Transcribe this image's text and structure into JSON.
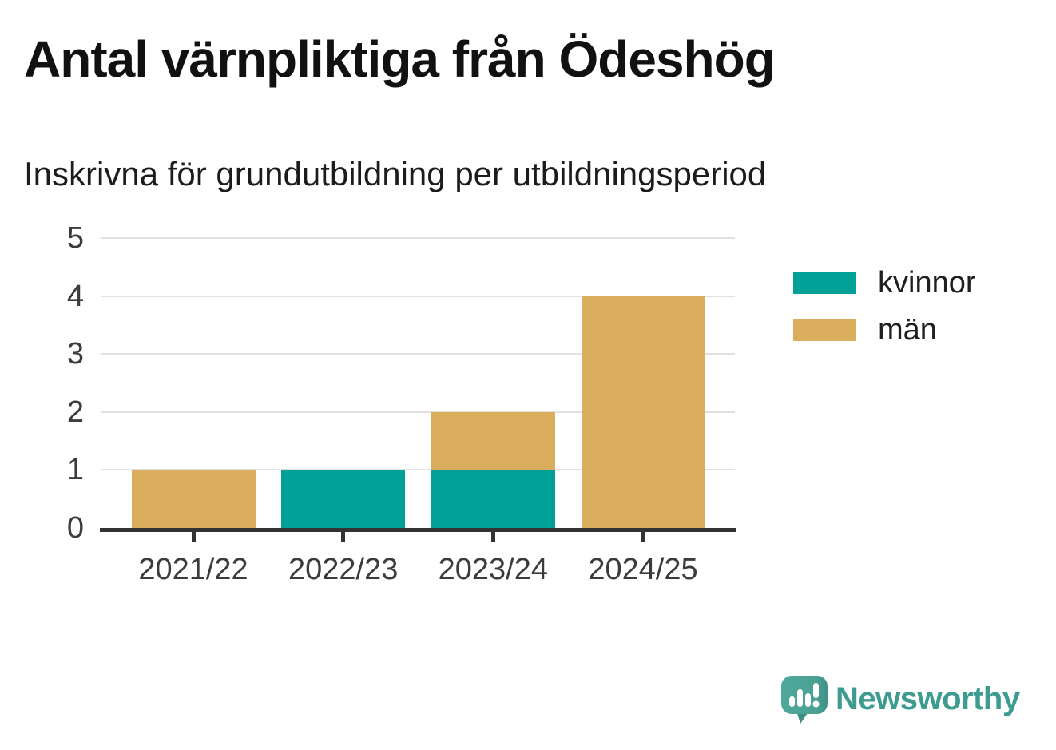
{
  "title": "Antal värnpliktiga från Ödeshög",
  "subtitle": "Inskrivna för grundutbildning per utbildningsperiod",
  "legend": {
    "items": [
      {
        "label": "kvinnor",
        "color": "#00a096"
      },
      {
        "label": "män",
        "color": "#dbae5e"
      }
    ]
  },
  "chart_data": {
    "type": "bar",
    "stacked": true,
    "title": "Antal värnpliktiga från Ödeshög",
    "subtitle": "Inskrivna för grundutbildning per utbildningsperiod",
    "categories": [
      "2021/22",
      "2022/23",
      "2023/24",
      "2024/25"
    ],
    "series": [
      {
        "name": "kvinnor",
        "color": "#00a096",
        "values": [
          0,
          1,
          1,
          0
        ]
      },
      {
        "name": "män",
        "color": "#dbae5e",
        "values": [
          1,
          0,
          1,
          4
        ]
      }
    ],
    "totals": [
      1,
      1,
      2,
      4
    ],
    "xlabel": "",
    "ylabel": "",
    "ylim": [
      0,
      5
    ],
    "yticks": [
      0,
      1,
      2,
      3,
      4,
      5
    ],
    "grid": true,
    "legend_position": "right"
  },
  "branding": {
    "logo_text": "Newsworthy",
    "logo_icon": "newsworthy-speech-bubble-bar-chart-icon",
    "logo_color": "#4aa294"
  }
}
